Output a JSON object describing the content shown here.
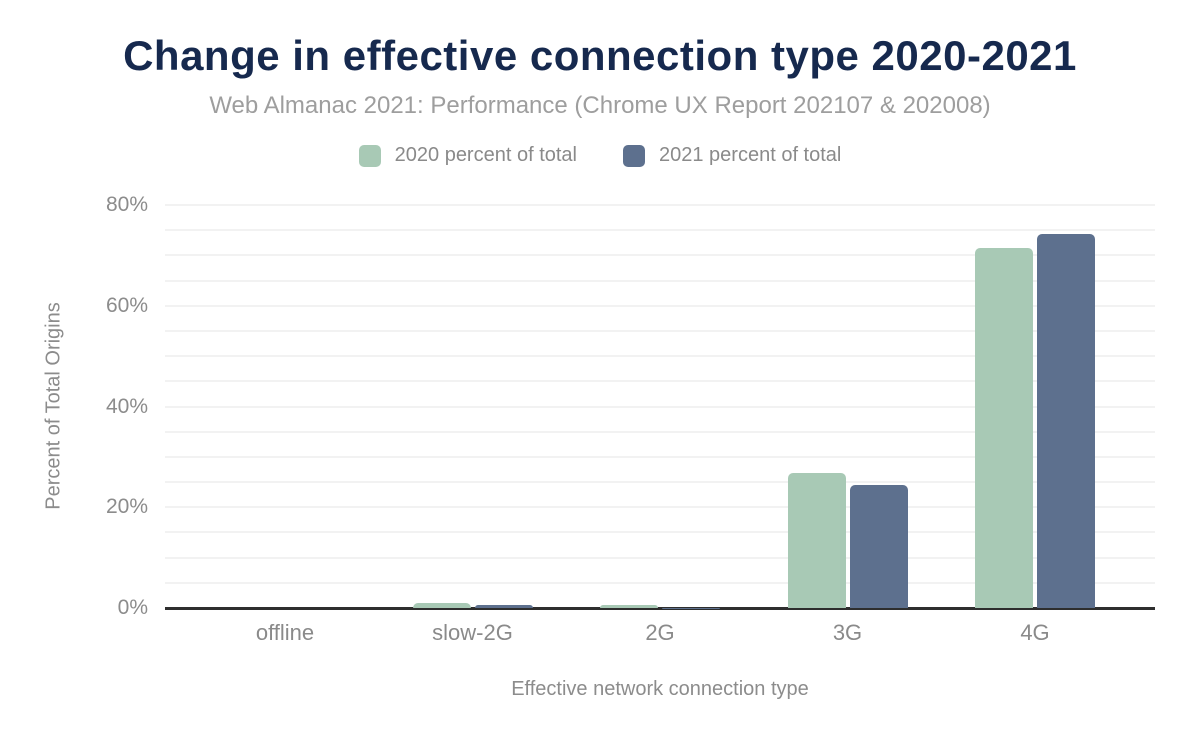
{
  "header": {
    "title": "Change in effective connection type 2020-2021",
    "subtitle": "Web Almanac 2021: Performance (Chrome UX Report 202107 & 202008)"
  },
  "legend": [
    {
      "label": "2020 percent of total",
      "color": "#a8c9b5"
    },
    {
      "label": "2021 percent of total",
      "color": "#5d708e"
    }
  ],
  "chart_data": {
    "type": "bar",
    "title": "Change in effective connection type 2020-2021",
    "subtitle": "Web Almanac 2021: Performance (Chrome UX Report 202107 & 202008)",
    "categories": [
      "offline",
      "slow-2G",
      "2G",
      "3G",
      "4G"
    ],
    "series": [
      {
        "name": "2020 percent of total",
        "color": "#a8c9b5",
        "values": [
          0.0,
          1.0,
          0.5,
          26.8,
          71.5
        ]
      },
      {
        "name": "2021 percent of total",
        "color": "#5d708e",
        "values": [
          0.0,
          0.6,
          0.1,
          24.5,
          74.3
        ]
      }
    ],
    "xlabel": "Effective network connection type",
    "ylabel": "Percent of Total Origins",
    "ylim": [
      0,
      80
    ],
    "yticks": [
      {
        "v": 0,
        "label": "0%"
      },
      {
        "v": 20,
        "label": "20%"
      },
      {
        "v": 40,
        "label": "40%"
      },
      {
        "v": 60,
        "label": "60%"
      },
      {
        "v": 80,
        "label": "80%"
      }
    ],
    "grid": {
      "minor_step": 5,
      "show": true
    },
    "legend_position": "top"
  },
  "colors": {
    "title": "#16294e",
    "subtitle": "#9e9e9e",
    "axis_text": "#8c8c8c",
    "gridline": "#f2f2f2",
    "axis_line": "#2e2e2e",
    "background": "#ffffff"
  }
}
